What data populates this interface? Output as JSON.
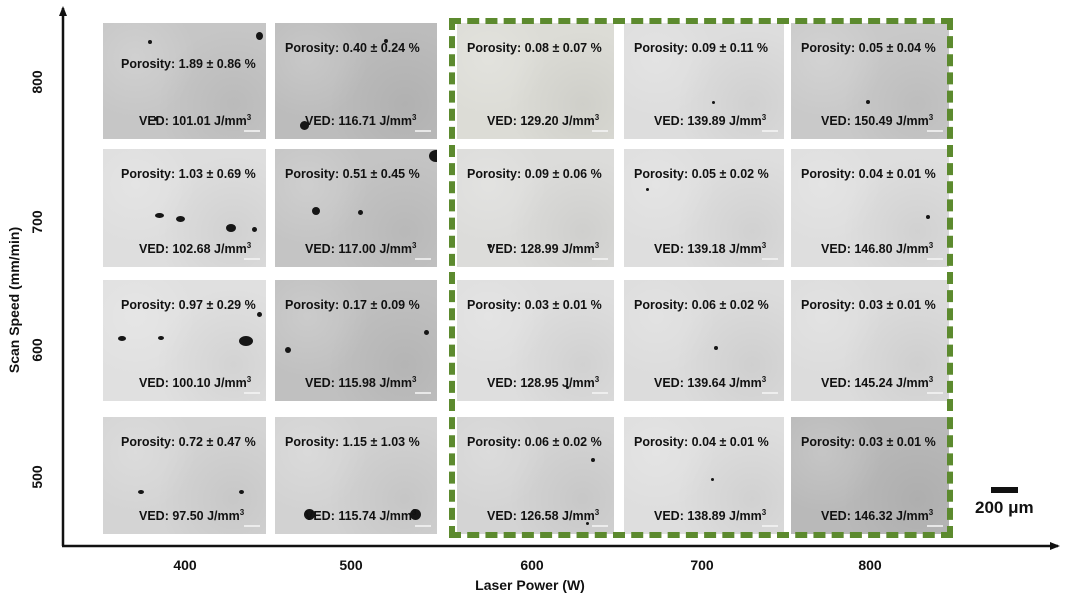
{
  "figure": {
    "y_axis_label": "Scan Speed (mm/min)",
    "x_axis_label": "Laser Power (W)",
    "y_ticks": [
      "800",
      "700",
      "600",
      "500"
    ],
    "x_ticks": [
      "400",
      "500",
      "600",
      "700",
      "800"
    ],
    "scale_bar_label": "200 μm",
    "highlight_color": "#5c8a2e"
  },
  "micrographs": [
    [
      {
        "porosity": "Porosity: 1.89 ± 0.86 %",
        "ved": "VED: 101.01 J/mm",
        "tone": "#c6c6c6"
      },
      {
        "porosity": "Porosity: 0.40 ± 0.24 %",
        "ved": "VED: 116.71 J/mm",
        "tone": "#bcbcbc"
      },
      {
        "porosity": "Porosity: 0.08 ± 0.07 %",
        "ved": "VED: 129.20 J/mm",
        "tone": "#dcdcd6"
      },
      {
        "porosity": "Porosity: 0.09 ± 0.11 %",
        "ved": "VED: 139.89 J/mm",
        "tone": "#dddddd"
      },
      {
        "porosity": "Porosity: 0.05 ± 0.04 %",
        "ved": "VED: 150.49 J/mm",
        "tone": "#c9c9c9"
      }
    ],
    [
      {
        "porosity": "Porosity: 1.03 ± 0.69 %",
        "ved": "VED: 102.68 J/mm",
        "tone": "#dedede"
      },
      {
        "porosity": "Porosity: 0.51 ± 0.45 %",
        "ved": "VED: 117.00 J/mm",
        "tone": "#c4c4c4"
      },
      {
        "porosity": "Porosity: 0.09 ± 0.06 %",
        "ved": "VED: 128.99 J/mm",
        "tone": "#dcdcda"
      },
      {
        "porosity": "Porosity: 0.05 ± 0.02 %",
        "ved": "VED: 139.18 J/mm",
        "tone": "#dedede"
      },
      {
        "porosity": "Porosity: 0.04 ± 0.01 %",
        "ved": "VED: 146.80 J/mm",
        "tone": "#dedede"
      }
    ],
    [
      {
        "porosity": "Porosity: 0.97 ± 0.29 %",
        "ved": "VED: 100.10 J/mm",
        "tone": "#e0e0e0"
      },
      {
        "porosity": "Porosity: 0.17 ± 0.09 %",
        "ved": "VED: 115.98 J/mm",
        "tone": "#c0c0c0"
      },
      {
        "porosity": "Porosity: 0.03 ± 0.01 %",
        "ved": "VED: 128.95 J/mm",
        "tone": "#dedede"
      },
      {
        "porosity": "Porosity: 0.06 ± 0.02 %",
        "ved": "VED: 139.64 J/mm",
        "tone": "#dcdcdc"
      },
      {
        "porosity": "Porosity: 0.03 ± 0.01 %",
        "ved": "VED: 145.24 J/mm",
        "tone": "#dcdcdc"
      }
    ],
    [
      {
        "porosity": "Porosity: 0.72 ± 0.47 %",
        "ved": "VED: 97.50 J/mm",
        "tone": "#d4d4d4"
      },
      {
        "porosity": "Porosity: 1.15 ± 1.03 %",
        "ved": "VED: 115.74 J/mm",
        "tone": "#d2d2d2"
      },
      {
        "porosity": "Porosity: 0.06 ± 0.02 %",
        "ved": "VED: 126.58 J/mm",
        "tone": "#d4d4d4"
      },
      {
        "porosity": "Porosity: 0.04 ± 0.01 %",
        "ved": "VED: 138.89 J/mm",
        "tone": "#dedede"
      },
      {
        "porosity": "Porosity: 0.03 ± 0.01 %",
        "ved": "VED: 146.32 J/mm",
        "tone": "#b9b9b9"
      }
    ]
  ]
}
